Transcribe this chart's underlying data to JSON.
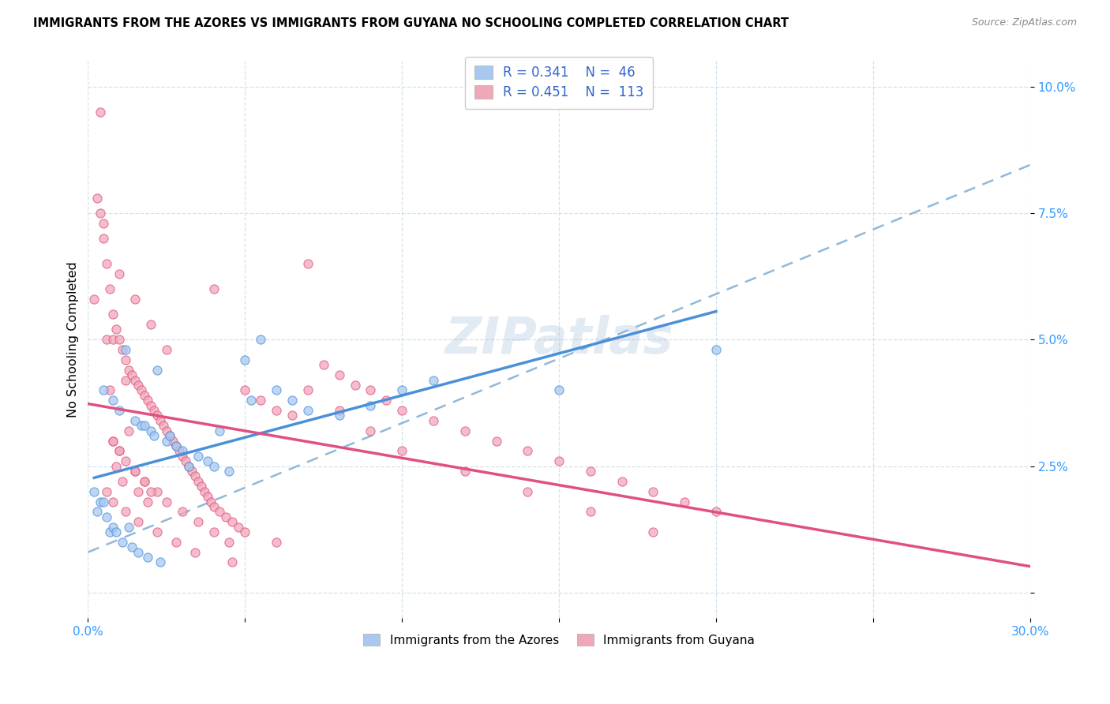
{
  "title": "IMMIGRANTS FROM THE AZORES VS IMMIGRANTS FROM GUYANA NO SCHOOLING COMPLETED CORRELATION CHART",
  "source": "Source: ZipAtlas.com",
  "ylabel": "No Schooling Completed",
  "xlim": [
    0.0,
    0.3
  ],
  "ylim": [
    -0.005,
    0.105
  ],
  "yticks": [
    0.0,
    0.025,
    0.05,
    0.075,
    0.1
  ],
  "ytick_labels": [
    "",
    "2.5%",
    "5.0%",
    "7.5%",
    "10.0%"
  ],
  "xticks": [
    0.0,
    0.05,
    0.1,
    0.15,
    0.2,
    0.25,
    0.3
  ],
  "xtick_labels": [
    "0.0%",
    "",
    "",
    "",
    "",
    "",
    "30.0%"
  ],
  "azores_color": "#a8c8f0",
  "guyana_color": "#f0a8b8",
  "trend_azores_color": "#4a90d9",
  "trend_guyana_color": "#e05080",
  "trend_dashed_color": "#90b8d8",
  "R_azores": 0.341,
  "N_azores": 46,
  "R_guyana": 0.451,
  "N_guyana": 113,
  "watermark": "ZIPatlas",
  "azores_x": [
    0.002,
    0.003,
    0.004,
    0.005,
    0.005,
    0.006,
    0.007,
    0.008,
    0.008,
    0.009,
    0.01,
    0.011,
    0.012,
    0.013,
    0.014,
    0.015,
    0.016,
    0.017,
    0.018,
    0.019,
    0.02,
    0.021,
    0.022,
    0.023,
    0.025,
    0.026,
    0.028,
    0.03,
    0.032,
    0.035,
    0.038,
    0.04,
    0.042,
    0.045,
    0.05,
    0.052,
    0.055,
    0.06,
    0.065,
    0.07,
    0.08,
    0.09,
    0.1,
    0.11,
    0.15,
    0.2
  ],
  "azores_y": [
    0.02,
    0.016,
    0.018,
    0.018,
    0.04,
    0.015,
    0.012,
    0.013,
    0.038,
    0.012,
    0.036,
    0.01,
    0.048,
    0.013,
    0.009,
    0.034,
    0.008,
    0.033,
    0.033,
    0.007,
    0.032,
    0.031,
    0.044,
    0.006,
    0.03,
    0.031,
    0.029,
    0.028,
    0.025,
    0.027,
    0.026,
    0.025,
    0.032,
    0.024,
    0.046,
    0.038,
    0.05,
    0.04,
    0.038,
    0.036,
    0.035,
    0.037,
    0.04,
    0.042,
    0.04,
    0.048
  ],
  "guyana_x": [
    0.002,
    0.003,
    0.004,
    0.005,
    0.005,
    0.006,
    0.006,
    0.007,
    0.007,
    0.008,
    0.008,
    0.008,
    0.009,
    0.009,
    0.01,
    0.01,
    0.01,
    0.011,
    0.011,
    0.012,
    0.012,
    0.013,
    0.013,
    0.014,
    0.015,
    0.015,
    0.015,
    0.016,
    0.016,
    0.017,
    0.018,
    0.018,
    0.019,
    0.019,
    0.02,
    0.02,
    0.021,
    0.022,
    0.022,
    0.023,
    0.024,
    0.025,
    0.025,
    0.026,
    0.027,
    0.028,
    0.029,
    0.03,
    0.031,
    0.032,
    0.033,
    0.034,
    0.035,
    0.036,
    0.037,
    0.038,
    0.039,
    0.04,
    0.042,
    0.044,
    0.046,
    0.048,
    0.05,
    0.055,
    0.06,
    0.065,
    0.07,
    0.075,
    0.08,
    0.085,
    0.09,
    0.095,
    0.1,
    0.11,
    0.12,
    0.13,
    0.14,
    0.15,
    0.16,
    0.17,
    0.18,
    0.19,
    0.2,
    0.008,
    0.01,
    0.012,
    0.015,
    0.018,
    0.02,
    0.025,
    0.03,
    0.035,
    0.04,
    0.045,
    0.05,
    0.06,
    0.07,
    0.08,
    0.09,
    0.1,
    0.12,
    0.14,
    0.16,
    0.18,
    0.004,
    0.006,
    0.008,
    0.012,
    0.016,
    0.022,
    0.028,
    0.034,
    0.04,
    0.046
  ],
  "guyana_y": [
    0.058,
    0.078,
    0.075,
    0.073,
    0.07,
    0.065,
    0.05,
    0.06,
    0.04,
    0.055,
    0.05,
    0.03,
    0.052,
    0.025,
    0.063,
    0.05,
    0.028,
    0.048,
    0.022,
    0.046,
    0.042,
    0.044,
    0.032,
    0.043,
    0.058,
    0.042,
    0.024,
    0.041,
    0.02,
    0.04,
    0.039,
    0.022,
    0.038,
    0.018,
    0.053,
    0.037,
    0.036,
    0.035,
    0.02,
    0.034,
    0.033,
    0.048,
    0.032,
    0.031,
    0.03,
    0.029,
    0.028,
    0.027,
    0.026,
    0.025,
    0.024,
    0.023,
    0.022,
    0.021,
    0.02,
    0.019,
    0.018,
    0.017,
    0.016,
    0.015,
    0.014,
    0.013,
    0.04,
    0.038,
    0.036,
    0.035,
    0.065,
    0.045,
    0.043,
    0.041,
    0.04,
    0.038,
    0.036,
    0.034,
    0.032,
    0.03,
    0.028,
    0.026,
    0.024,
    0.022,
    0.02,
    0.018,
    0.016,
    0.03,
    0.028,
    0.026,
    0.024,
    0.022,
    0.02,
    0.018,
    0.016,
    0.014,
    0.012,
    0.01,
    0.012,
    0.01,
    0.04,
    0.036,
    0.032,
    0.028,
    0.024,
    0.02,
    0.016,
    0.012,
    0.095,
    0.02,
    0.018,
    0.016,
    0.014,
    0.012,
    0.01,
    0.008,
    0.06,
    0.006
  ]
}
